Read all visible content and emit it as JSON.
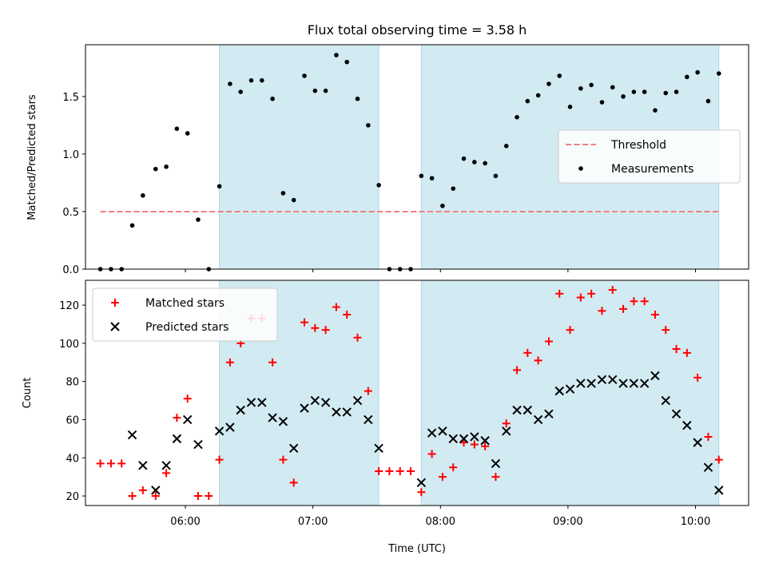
{
  "title": "Flux total observing time = 3.58 h",
  "colors": {
    "band": "#add8e6",
    "threshold": "#f08080",
    "matched": "#ff0000",
    "predicted": "#000000",
    "measurement": "#000000"
  },
  "chart_data": [
    {
      "type": "scatter",
      "panel": "top",
      "title": "Flux total observing time = 3.58 h",
      "xlabel": "",
      "ylabel": "Matched/Predicted stars",
      "xlim": [
        "05:13",
        "10:25"
      ],
      "ylim": [
        0,
        1.95
      ],
      "yticks": [
        0.0,
        0.5,
        1.0,
        1.5
      ],
      "ytick_labels": [
        "0.0",
        "0.5",
        "1.0",
        "1.5"
      ],
      "shaded_intervals": [
        [
          "06:16",
          "07:31"
        ],
        [
          "07:51",
          "10:11"
        ]
      ],
      "legend_position": "center-right",
      "threshold": {
        "name": "Threshold",
        "y": 0.5,
        "x_range": [
          "05:20",
          "10:11"
        ]
      },
      "series": [
        {
          "name": "Measurements",
          "x": [
            "05:20",
            "05:25",
            "05:30",
            "05:35",
            "05:40",
            "05:46",
            "05:51",
            "05:56",
            "06:01",
            "06:06",
            "06:11",
            "06:16",
            "06:21",
            "06:26",
            "06:31",
            "06:36",
            "06:41",
            "06:46",
            "06:51",
            "06:56",
            "07:01",
            "07:06",
            "07:11",
            "07:16",
            "07:21",
            "07:26",
            "07:31",
            "07:36",
            "07:41",
            "07:46",
            "07:51",
            "07:56",
            "08:01",
            "08:06",
            "08:11",
            "08:16",
            "08:21",
            "08:26",
            "08:31",
            "08:36",
            "08:41",
            "08:46",
            "08:51",
            "08:56",
            "09:01",
            "09:06",
            "09:11",
            "09:16",
            "09:21",
            "09:26",
            "09:31",
            "09:36",
            "09:41",
            "09:46",
            "09:51",
            "09:56",
            "10:01",
            "10:06",
            "10:11"
          ],
          "y": [
            0,
            0,
            0,
            0.38,
            0.64,
            0.87,
            0.89,
            1.22,
            1.18,
            0.43,
            0,
            0.72,
            1.61,
            1.54,
            1.64,
            1.64,
            1.48,
            0.66,
            0.6,
            1.68,
            1.55,
            1.55,
            1.86,
            1.8,
            1.48,
            1.25,
            0.73,
            0,
            0,
            0,
            0.81,
            0.79,
            0.55,
            0.7,
            0.96,
            0.93,
            0.92,
            0.81,
            1.07,
            1.32,
            1.46,
            1.51,
            1.61,
            1.68,
            1.41,
            1.57,
            1.6,
            1.45,
            1.58,
            1.5,
            1.54,
            1.54,
            1.38,
            1.53,
            1.54,
            1.67,
            1.71,
            1.46,
            1.7
          ]
        }
      ]
    },
    {
      "type": "scatter",
      "panel": "bottom",
      "xlabel": "Time (UTC)",
      "ylabel": "Count",
      "xlim": [
        "05:13",
        "10:25"
      ],
      "ylim": [
        15,
        133
      ],
      "yticks": [
        20,
        40,
        60,
        80,
        100,
        120
      ],
      "xticks": [
        "06:00",
        "07:00",
        "08:00",
        "09:00",
        "10:00"
      ],
      "shaded_intervals": [
        [
          "06:16",
          "07:31"
        ],
        [
          "07:51",
          "10:11"
        ]
      ],
      "legend_position": "upper-left",
      "series": [
        {
          "name": "Matched stars",
          "marker": "+",
          "x": [
            "05:20",
            "05:25",
            "05:30",
            "05:35",
            "05:40",
            "05:46",
            "05:51",
            "05:56",
            "06:01",
            "06:06",
            "06:11",
            "06:16",
            "06:21",
            "06:26",
            "06:31",
            "06:36",
            "06:41",
            "06:46",
            "06:51",
            "06:56",
            "07:01",
            "07:06",
            "07:11",
            "07:16",
            "07:21",
            "07:26",
            "07:31",
            "07:36",
            "07:41",
            "07:46",
            "07:51",
            "07:56",
            "08:01",
            "08:06",
            "08:11",
            "08:16",
            "08:21",
            "08:26",
            "08:31",
            "08:36",
            "08:41",
            "08:46",
            "08:51",
            "08:56",
            "09:01",
            "09:06",
            "09:11",
            "09:16",
            "09:21",
            "09:26",
            "09:31",
            "09:36",
            "09:41",
            "09:46",
            "09:51",
            "09:56",
            "10:01",
            "10:06",
            "10:11"
          ],
          "y": [
            37,
            37,
            37,
            20,
            23,
            20,
            32,
            61,
            71,
            20,
            20,
            39,
            90,
            100,
            113,
            113,
            90,
            39,
            27,
            111,
            108,
            107,
            119,
            115,
            103,
            75,
            33,
            33,
            33,
            33,
            22,
            42,
            30,
            35,
            48,
            47,
            46,
            30,
            58,
            86,
            95,
            91,
            101,
            126,
            107,
            124,
            126,
            117,
            128,
            118,
            122,
            122,
            115,
            107,
            97,
            95,
            82,
            51,
            39
          ]
        },
        {
          "name": "Predicted stars",
          "marker": "x",
          "x": [
            "05:35",
            "05:40",
            "05:46",
            "05:51",
            "05:56",
            "06:01",
            "06:06",
            "06:16",
            "06:21",
            "06:26",
            "06:31",
            "06:36",
            "06:41",
            "06:46",
            "06:51",
            "06:56",
            "07:01",
            "07:06",
            "07:11",
            "07:16",
            "07:21",
            "07:26",
            "07:31",
            "07:51",
            "07:56",
            "08:01",
            "08:06",
            "08:11",
            "08:16",
            "08:21",
            "08:26",
            "08:31",
            "08:36",
            "08:41",
            "08:46",
            "08:51",
            "08:56",
            "09:01",
            "09:06",
            "09:11",
            "09:16",
            "09:21",
            "09:26",
            "09:31",
            "09:36",
            "09:41",
            "09:46",
            "09:51",
            "09:56",
            "10:01",
            "10:06",
            "10:11"
          ],
          "y": [
            52,
            36,
            23,
            36,
            50,
            60,
            47,
            54,
            56,
            65,
            69,
            69,
            61,
            59,
            45,
            66,
            70,
            69,
            64,
            64,
            70,
            60,
            45,
            27,
            53,
            54,
            50,
            50,
            51,
            49,
            37,
            54,
            65,
            65,
            60,
            63,
            75,
            76,
            79,
            79,
            81,
            81,
            79,
            79,
            79,
            83,
            70,
            63,
            57,
            48,
            35,
            23
          ]
        }
      ]
    }
  ]
}
